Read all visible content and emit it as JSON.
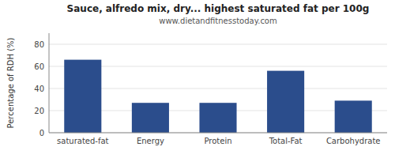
{
  "chart_data": {
    "type": "bar",
    "title": "Sauce, alfredo mix, dry... highest saturated fat per 100g",
    "subtitle": "www.dietandfitnesstoday.com",
    "categories": [
      "saturated-fat",
      "Energy",
      "Protein",
      "Total-Fat",
      "Carbohydrate"
    ],
    "values": [
      66,
      27,
      27,
      56,
      29
    ],
    "color": "#2b4d8c",
    "ylabel": "Percentage of RDH (%)",
    "ylim": [
      0,
      90
    ],
    "yticks": [
      0,
      20,
      40,
      60,
      80
    ],
    "grid": true
  }
}
